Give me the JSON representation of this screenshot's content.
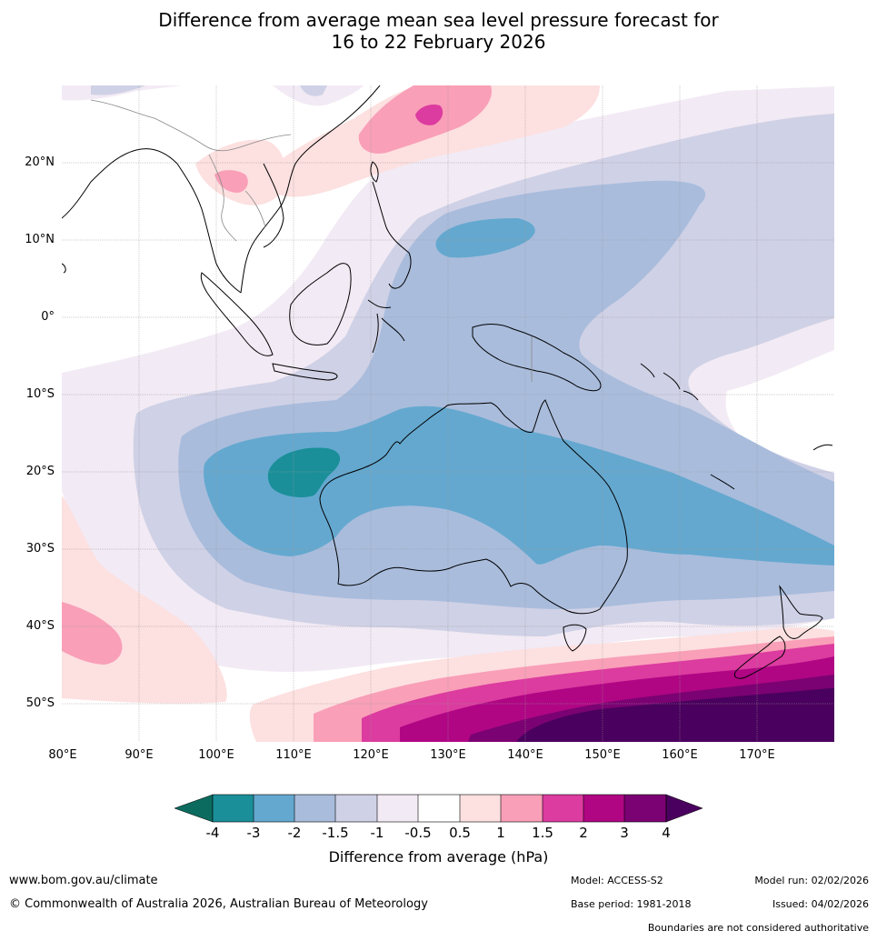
{
  "title": {
    "line1": "Difference from average mean sea level pressure forecast for",
    "line2": "16 to 22 February 2026"
  },
  "map": {
    "lat_labels": [
      "20°N",
      "10°N",
      "0°",
      "10°S",
      "20°S",
      "30°S",
      "40°S",
      "50°S"
    ],
    "lon_labels": [
      "80°E",
      "90°E",
      "100°E",
      "110°E",
      "120°E",
      "130°E",
      "140°E",
      "150°E",
      "160°E",
      "170°E"
    ],
    "extent": {
      "lon_min": 80,
      "lon_max": 180,
      "lat_min": -55,
      "lat_max": 30
    }
  },
  "colorbar": {
    "title": "Difference from average (hPa)",
    "ticks": [
      "-4",
      "-3",
      "-2",
      "-1.5",
      "-1",
      "-0.5",
      "0.5",
      "1",
      "1.5",
      "2",
      "3",
      "4"
    ],
    "colors": {
      "lt_m4": "#0b6b5e",
      "m4_m3": "#1a8f99",
      "m3_m2": "#64a8cf",
      "m2_m15": "#a9bcdc",
      "m15_m1": "#cfd1e6",
      "m1_m05": "#f2eaf4",
      "neutral": "#ffffff",
      "p05_p1": "#fde0e0",
      "p1_p15": "#f99fb8",
      "p15_p2": "#dc3b9f",
      "p2_p3": "#b00684",
      "p3_p4": "#7b0272",
      "gt_p4": "#4a005e"
    }
  },
  "footer": {
    "website": "www.bom.gov.au/climate",
    "copyright": "© Commonwealth of Australia 2026, Australian Bureau of Meteorology",
    "model": "Model: ACCESS-S2",
    "base_period": "Base period: 1981-2018",
    "model_run": "Model run: 02/02/2026",
    "issued": "Issued: 04/02/2026",
    "disclaimer": "Boundaries are not considered authoritative"
  }
}
